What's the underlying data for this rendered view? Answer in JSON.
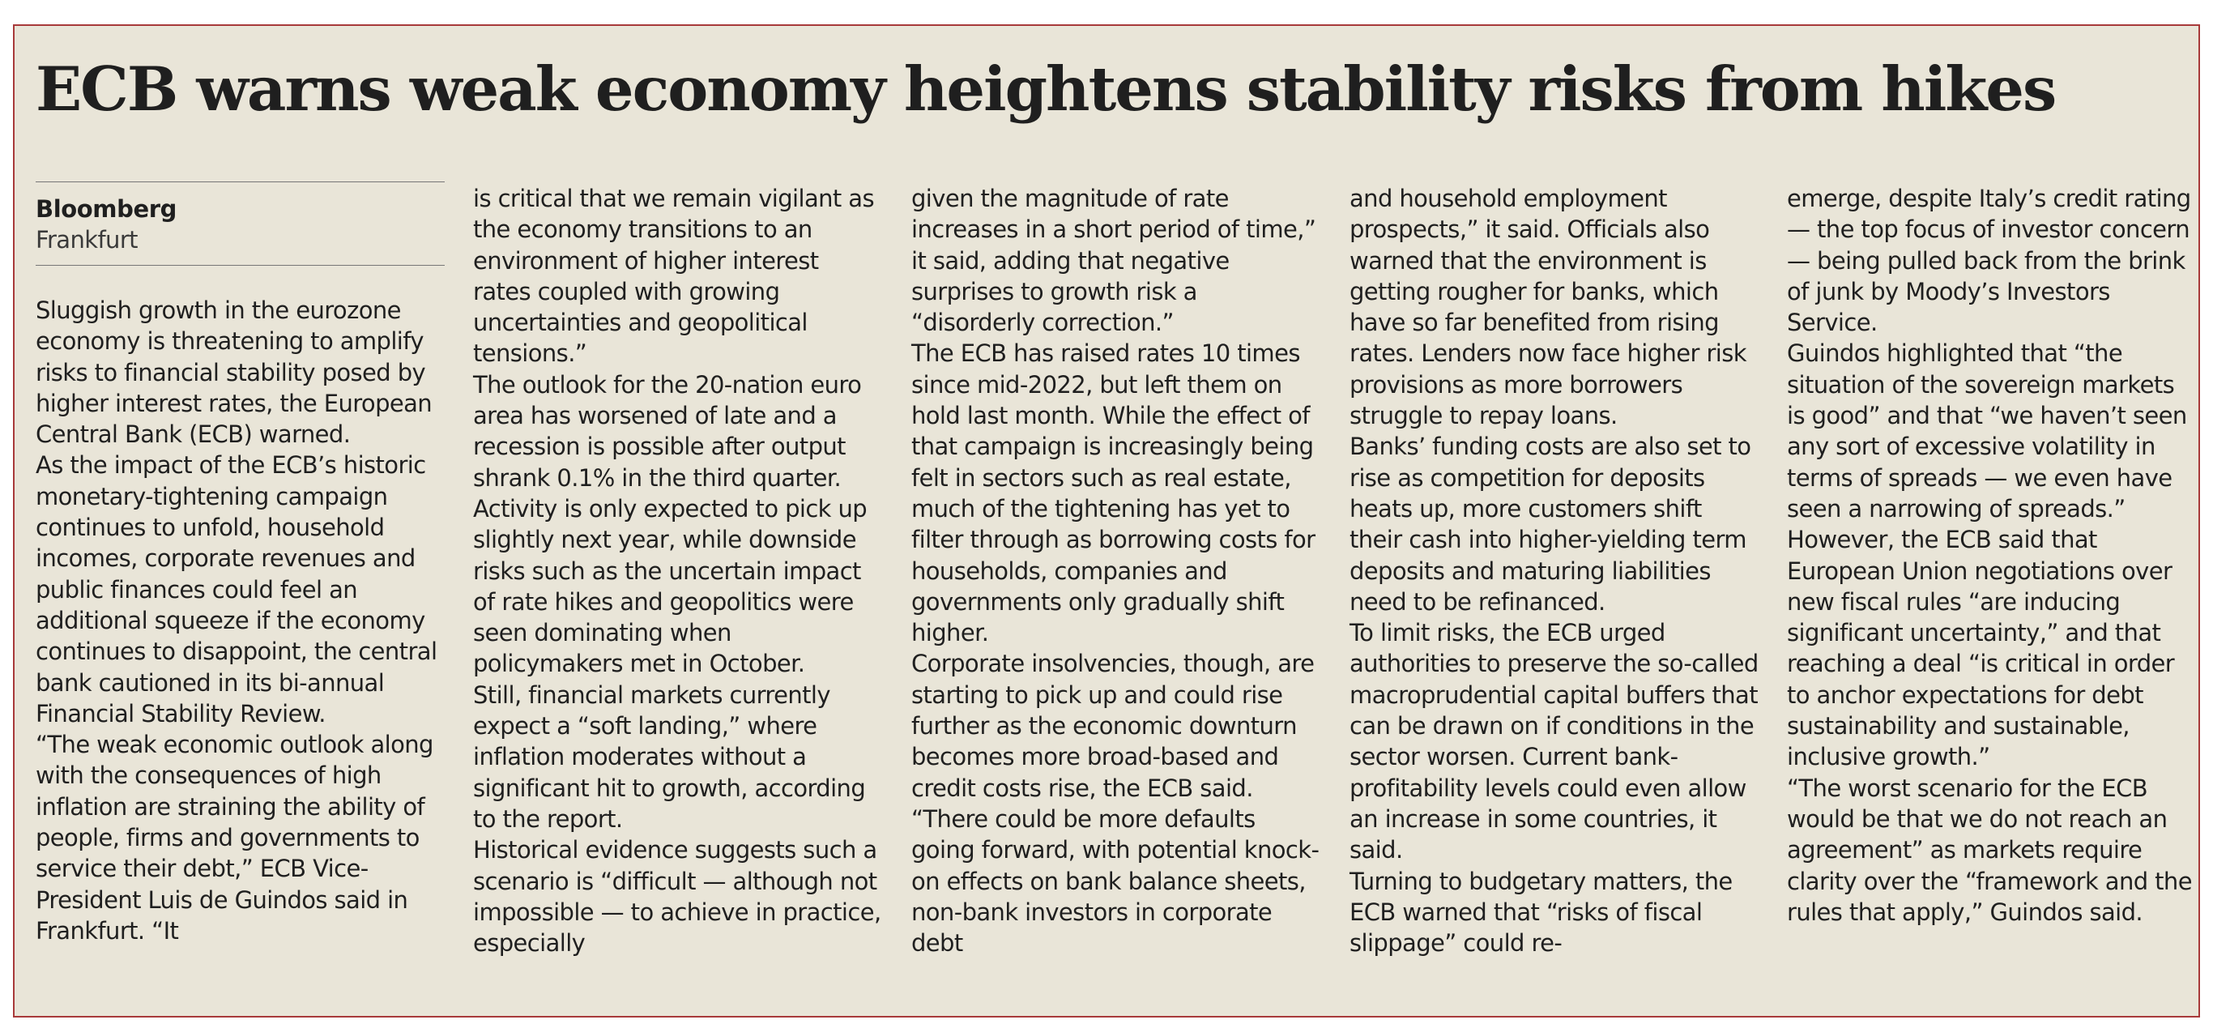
{
  "article": {
    "headline": "ECB warns weak economy heightens stability risks from hikes",
    "byline": {
      "source": "Bloomberg",
      "location": "Frankfurt"
    },
    "columns": [
      [
        "Sluggish growth in the eurozone economy is threatening to amplify risks to financial stability posed by higher interest rates, the European Central Bank (ECB) warned.",
        "As the impact of the ECB’s historic monetary-tightening campaign continues to unfold, household incomes, corporate revenues and public finances could feel an additional squeeze if the economy continues to disappoint, the central bank cautioned in its bi-annual Financial Stability Review.",
        "“The weak economic outlook along with the consequences of high inflation are straining the ability of people, firms and governments to service their debt,” ECB Vice-President Luis de Guindos said in Frankfurt. “It"
      ],
      [
        "is critical that we remain vigilant as the economy transitions to an environment of higher interest rates coupled with growing uncertainties and geopolitical tensions.”",
        "The outlook for the 20-nation euro area has worsened of late and a recession is possible after output shrank 0.1% in the third quarter.",
        "Activity is only expected to pick up slightly next year, while downside risks such as the uncertain impact of rate hikes and geopolitics were seen dominating when policymakers met in October.",
        "Still, financial markets currently expect a “soft landing,” where inflation moderates without a significant hit to growth, according to the report.",
        "Historical evidence suggests such a scenario is “difficult — although not impossible — to achieve in practice, especially"
      ],
      [
        "given the magnitude of rate increases in a short period of time,” it said, adding that negative surprises to growth risk a “disorderly correction.”",
        "The ECB has raised rates 10 times since mid-2022, but left them on hold last month. While the effect of that campaign is increasingly being felt in sectors such as real estate, much of the tightening has yet to filter through as borrowing costs for households, companies and governments only gradually shift higher.",
        "Corporate insolvencies, though, are starting to pick up and could rise further as the economic downturn becomes more broad-based and credit costs rise, the ECB said.",
        "“There could be more defaults going forward, with potential knock-on effects on bank balance sheets, non-bank investors in corporate debt"
      ],
      [
        "and household employment prospects,” it said. Officials also warned that the environment is getting rougher for banks, which have so far benefited from rising rates. Lenders now face higher risk provisions as more borrowers struggle to repay loans.",
        "Banks’ funding costs are also set to rise as competition for deposits heats up, more customers shift their cash into higher-yielding term deposits and maturing liabilities need to be refinanced.",
        "To limit risks, the ECB urged authorities to preserve the so-called macroprudential capital buffers that can be drawn on if conditions in the sector worsen. Current bank-profitability levels could even allow an increase in some countries, it said.",
        "Turning to budgetary matters, the ECB warned that “risks of fiscal slippage” could re-"
      ],
      [
        "emerge, despite Italy’s credit rating — the top focus of investor concern — being pulled back from the brink of junk by Moody’s Investors Service.",
        "Guindos highlighted that “the situation of the sovereign markets is good” and that “we haven’t seen any sort of excessive volatility in terms of spreads — we even have seen a narrowing of spreads.”",
        "However, the ECB said that European Union negotiations over new fiscal rules “are inducing significant uncertainty,” and that reaching a deal “is critical in order to anchor expectations for debt sustainability and sustainable, inclusive growth.”",
        "“The worst scenario for the ECB would be that we do not reach an agreement” as markets require clarity over the “framework and the rules that apply,” Guindos said."
      ]
    ]
  }
}
